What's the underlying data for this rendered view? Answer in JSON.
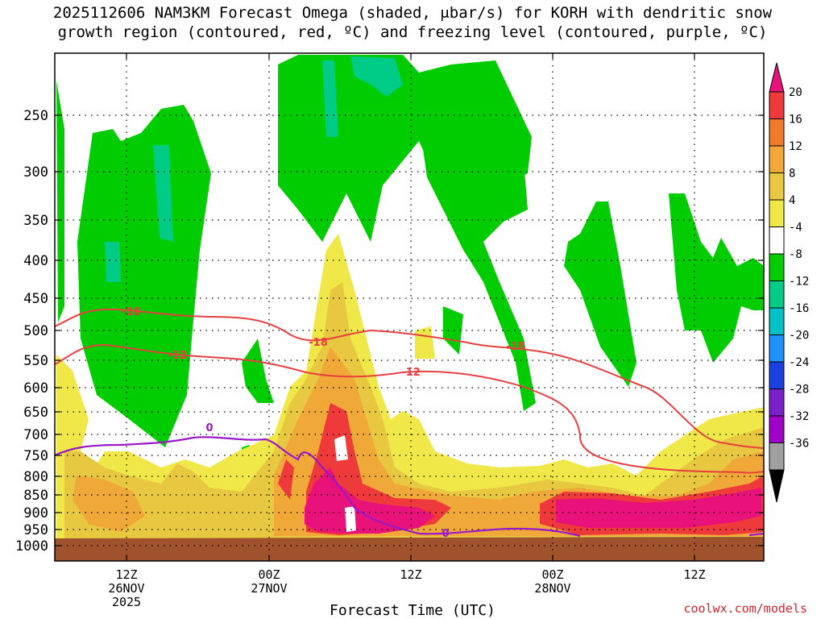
{
  "title": {
    "line1": "2025112606 NAM3KM Forecast Omega (shaded, μbar/s) for KORH with dendritic snow",
    "line2": "growth region (contoured, red, ºC) and freezing level (contoured, purple, ºC)"
  },
  "source": "coolwx.com/models",
  "chart_data": {
    "type": "heatmap",
    "xlabel": "Forecast Time (UTC)",
    "ylabel": "",
    "x_ticks": [
      {
        "label": "12Z",
        "sub1": "26NOV",
        "sub2": "2025"
      },
      {
        "label": "00Z",
        "sub1": "27NOV",
        "sub2": ""
      },
      {
        "label": "12Z",
        "sub1": "",
        "sub2": ""
      },
      {
        "label": "00Z",
        "sub1": "28NOV",
        "sub2": ""
      },
      {
        "label": "12Z",
        "sub1": "",
        "sub2": ""
      }
    ],
    "y_ticks": [
      "250",
      "300",
      "350",
      "400",
      "450",
      "500",
      "550",
      "600",
      "650",
      "700",
      "750",
      "800",
      "850",
      "900",
      "950",
      "1000"
    ],
    "y_reversed": true,
    "grid": true,
    "colorbar": {
      "labels": [
        "20",
        "16",
        "12",
        "8",
        "4",
        "-4",
        "-8",
        "-12",
        "-16",
        "-20",
        "-24",
        "-28",
        "-32",
        "-36"
      ],
      "colors": [
        "#e8127a",
        "#ee3a3a",
        "#f07a2a",
        "#f0a838",
        "#e8c840",
        "#f0e848",
        "#ffffff",
        "#00cc00",
        "#00cc88",
        "#00c0c8",
        "#1e90ff",
        "#1a40e0",
        "#7a20c8",
        "#a000c8",
        "#a0a0a0",
        "#000000"
      ]
    },
    "contours": [
      {
        "name": "-18",
        "color": "#e84040"
      },
      {
        "name": "-12",
        "color": "#e84040"
      },
      {
        "name": "0",
        "color": "#9a18c8"
      }
    ],
    "terrain_color": "#a0522d"
  }
}
